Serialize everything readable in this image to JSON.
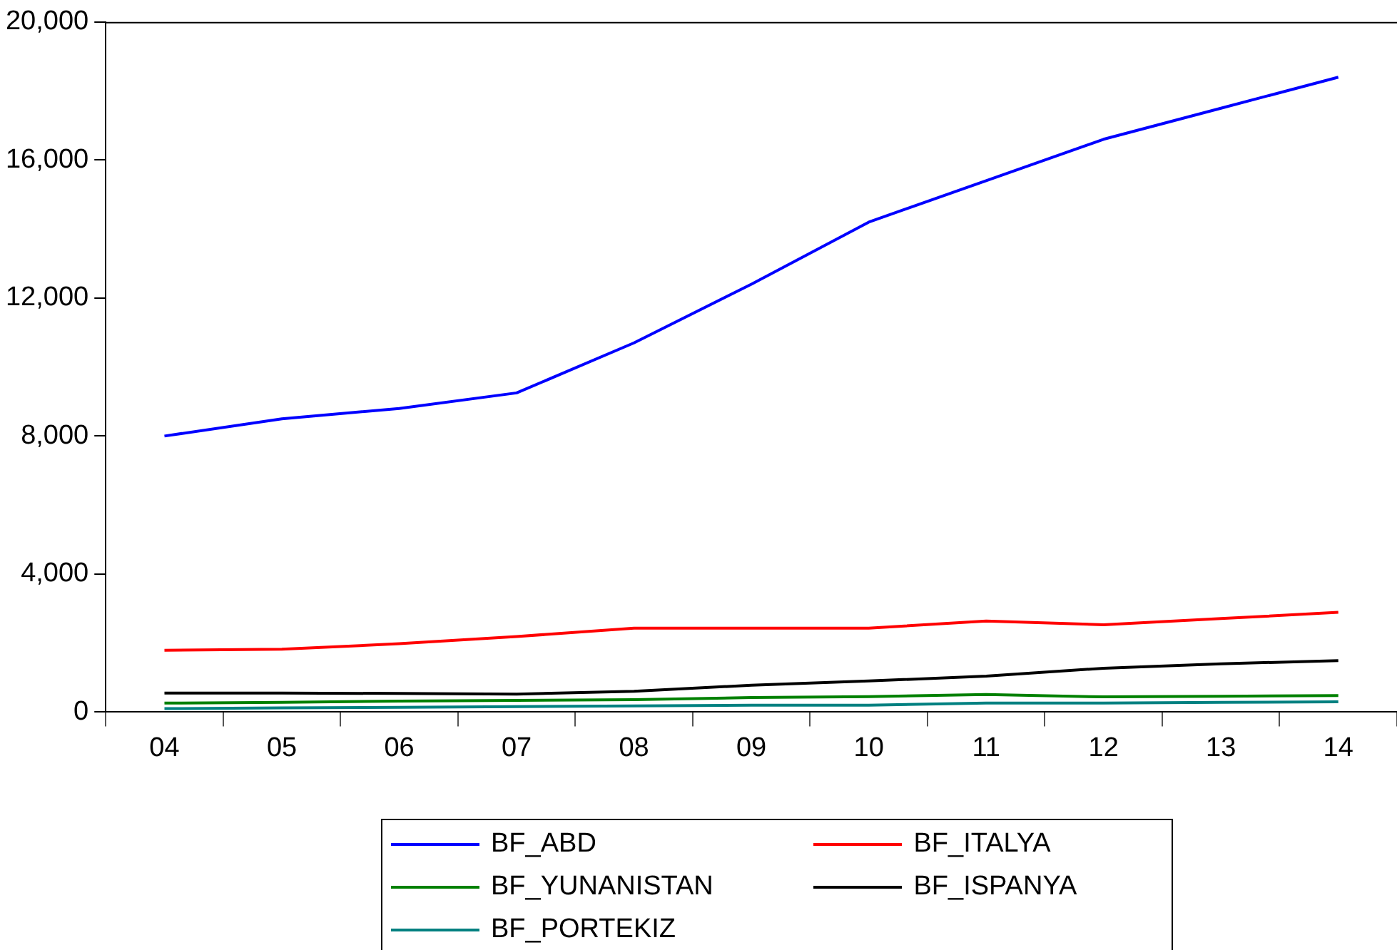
{
  "chart_data": {
    "type": "line",
    "categories": [
      "04",
      "05",
      "06",
      "07",
      "08",
      "09",
      "10",
      "11",
      "12",
      "13",
      "14"
    ],
    "series": [
      {
        "name": "BF_ABD",
        "color": "#0000ff",
        "values": [
          8000,
          8500,
          8800,
          9250,
          10700,
          12400,
          14200,
          15400,
          16600,
          17500,
          18400
        ]
      },
      {
        "name": "BF_ITALYA",
        "color": "#ff0000",
        "values": [
          1790,
          1820,
          1980,
          2190,
          2430,
          2430,
          2430,
          2640,
          2530,
          2710,
          2890
        ]
      },
      {
        "name": "BF_YUNANISTAN",
        "color": "#008000",
        "values": [
          260,
          280,
          320,
          340,
          360,
          420,
          450,
          510,
          440,
          460,
          480
        ]
      },
      {
        "name": "BF_ISPANYA",
        "color": "#000000",
        "values": [
          550,
          550,
          540,
          520,
          600,
          780,
          900,
          1040,
          1270,
          1400,
          1490
        ]
      },
      {
        "name": "BF_PORTEKIZ",
        "color": "#008080",
        "values": [
          100,
          120,
          140,
          160,
          180,
          200,
          200,
          260,
          260,
          280,
          300
        ]
      }
    ],
    "ylim": [
      0,
      20000
    ],
    "yticks": [
      0,
      {
        "value": 4000,
        "label": "4,000"
      },
      {
        "value": 8000,
        "label": "8,000"
      },
      {
        "value": 12000,
        "label": "12,000"
      },
      {
        "value": 16000,
        "label": "16,000"
      },
      {
        "value": 20000,
        "label": "20,000"
      }
    ],
    "grid": false,
    "legend": "bottom",
    "marker": "none",
    "line_style": "solid"
  }
}
